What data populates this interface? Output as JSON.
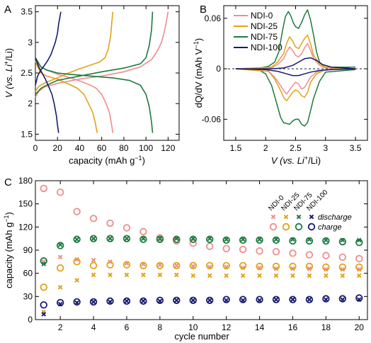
{
  "colors": {
    "NDI-0": "#f08c8c",
    "NDI-25": "#e0a317",
    "NDI-75": "#1d7a3e",
    "NDI-100": "#171b6e"
  },
  "chart_data": [
    {
      "panel": "A",
      "type": "line",
      "xlabel": "capacity (mAh g⁻¹)",
      "ylabel": "V (vs. Li⁺/Li)",
      "xlim": [
        0,
        130
      ],
      "ylim": [
        1.4,
        3.6
      ],
      "xticks": [
        0,
        20,
        40,
        60,
        80,
        100,
        120
      ],
      "yticks": [
        1.5,
        2,
        2.5,
        3,
        3.5
      ],
      "ytick_labels": [
        "1.5",
        "2",
        "2.5",
        "3",
        "3.5"
      ],
      "grid": false,
      "series": [
        {
          "name": "NDI-0",
          "segment": "discharge",
          "x": [
            0,
            2,
            5,
            10,
            20,
            30,
            40,
            50,
            55,
            60,
            64,
            67,
            69,
            70
          ],
          "y": [
            2.75,
            2.65,
            2.6,
            2.55,
            2.48,
            2.43,
            2.37,
            2.3,
            2.25,
            2.15,
            2.0,
            1.85,
            1.65,
            1.52
          ]
        },
        {
          "name": "NDI-0",
          "segment": "charge",
          "x": [
            0,
            3,
            8,
            20,
            40,
            60,
            80,
            95,
            105,
            110,
            114,
            117,
            120
          ],
          "y": [
            2.1,
            2.2,
            2.27,
            2.33,
            2.4,
            2.45,
            2.52,
            2.6,
            2.72,
            2.85,
            3.0,
            3.2,
            3.5
          ]
        },
        {
          "name": "NDI-25",
          "segment": "discharge",
          "x": [
            0,
            2,
            5,
            10,
            20,
            30,
            38,
            44,
            48,
            52,
            54,
            55,
            56
          ],
          "y": [
            2.7,
            2.6,
            2.5,
            2.45,
            2.4,
            2.32,
            2.25,
            2.15,
            2.0,
            1.85,
            1.7,
            1.6,
            1.52
          ]
        },
        {
          "name": "NDI-25",
          "segment": "charge",
          "x": [
            0,
            3,
            10,
            20,
            30,
            40,
            50,
            58,
            63,
            66,
            68,
            69,
            70
          ],
          "y": [
            2.2,
            2.28,
            2.35,
            2.42,
            2.5,
            2.57,
            2.63,
            2.68,
            2.75,
            2.9,
            3.1,
            3.3,
            3.5
          ]
        },
        {
          "name": "NDI-75",
          "segment": "discharge",
          "x": [
            0,
            5,
            10,
            20,
            30,
            50,
            70,
            85,
            95,
            100,
            103,
            105,
            106
          ],
          "y": [
            2.75,
            2.6,
            2.55,
            2.5,
            2.48,
            2.45,
            2.42,
            2.38,
            2.3,
            2.15,
            1.95,
            1.7,
            1.52
          ]
        },
        {
          "name": "NDI-75",
          "segment": "charge",
          "x": [
            0,
            5,
            10,
            20,
            40,
            60,
            80,
            95,
            100,
            103,
            105,
            106
          ],
          "y": [
            2.15,
            2.25,
            2.3,
            2.38,
            2.45,
            2.52,
            2.58,
            2.65,
            2.75,
            2.95,
            3.2,
            3.5
          ]
        },
        {
          "name": "NDI-100",
          "segment": "discharge",
          "x": [
            0,
            3,
            6,
            9,
            12,
            15,
            17,
            19,
            20,
            21
          ],
          "y": [
            2.75,
            2.6,
            2.5,
            2.4,
            2.28,
            2.15,
            2.0,
            1.8,
            1.65,
            1.52
          ]
        },
        {
          "name": "NDI-100",
          "segment": "charge",
          "x": [
            0,
            2,
            5,
            8,
            11,
            14,
            16,
            18,
            20,
            21,
            22,
            23
          ],
          "y": [
            2.3,
            2.45,
            2.55,
            2.62,
            2.7,
            2.8,
            2.9,
            3.0,
            3.15,
            3.3,
            3.4,
            3.5
          ]
        }
      ]
    },
    {
      "panel": "B",
      "type": "line",
      "xlabel": "V (vs. Li⁺/Li)",
      "ylabel": "dQ/dV (mAh V⁻¹)",
      "xlim": [
        1.3,
        3.7
      ],
      "ylim": [
        -0.085,
        0.075
      ],
      "xticks": [
        1.5,
        2,
        2.5,
        3,
        3.5
      ],
      "xtick_labels": [
        "1.5",
        "2",
        "2.5",
        "3",
        "3.5"
      ],
      "yticks": [
        -0.06,
        0,
        0.06
      ],
      "ytick_labels": [
        "-0.06",
        "0",
        "0.06"
      ],
      "grid": false,
      "legend": {
        "position": "top-left",
        "entries": [
          "NDI-0",
          "NDI-25",
          "NDI-75",
          "NDI-100"
        ]
      },
      "series": [
        {
          "name": "NDI-75",
          "segment": "charge",
          "x": [
            1.5,
            1.9,
            2.05,
            2.15,
            2.22,
            2.28,
            2.33,
            2.38,
            2.42,
            2.46,
            2.5,
            2.55,
            2.6,
            2.65,
            2.7,
            2.75,
            2.8,
            2.85,
            2.9,
            2.95,
            3.0,
            3.5
          ],
          "y": [
            0.0,
            0.001,
            0.003,
            0.008,
            0.02,
            0.045,
            0.062,
            0.068,
            0.063,
            0.055,
            0.05,
            0.048,
            0.055,
            0.064,
            0.07,
            0.058,
            0.04,
            0.02,
            0.008,
            0.004,
            0.002,
            0.002
          ]
        },
        {
          "name": "NDI-75",
          "segment": "discharge",
          "x": [
            1.5,
            1.9,
            2.0,
            2.1,
            2.2,
            2.25,
            2.3,
            2.35,
            2.4,
            2.45,
            2.5,
            2.55,
            2.6,
            2.65,
            2.7,
            2.75,
            2.8,
            2.9,
            3.0,
            3.5
          ],
          "y": [
            0.0,
            -0.002,
            -0.006,
            -0.02,
            -0.045,
            -0.058,
            -0.064,
            -0.065,
            -0.066,
            -0.062,
            -0.06,
            -0.06,
            -0.066,
            -0.068,
            -0.064,
            -0.05,
            -0.035,
            -0.015,
            -0.004,
            -0.001
          ]
        },
        {
          "name": "NDI-0",
          "segment": "charge",
          "x": [
            1.5,
            2.1,
            2.2,
            2.3,
            2.35,
            2.4,
            2.45,
            2.5,
            2.55,
            2.6,
            2.65,
            2.7,
            2.75,
            2.8,
            2.9,
            3.0,
            3.5
          ],
          "y": [
            0.0,
            0.001,
            0.005,
            0.012,
            0.02,
            0.026,
            0.022,
            0.016,
            0.014,
            0.018,
            0.025,
            0.03,
            0.022,
            0.012,
            0.004,
            0.001,
            0.0
          ]
        },
        {
          "name": "NDI-0",
          "segment": "discharge",
          "x": [
            1.5,
            2.05,
            2.15,
            2.25,
            2.3,
            2.35,
            2.4,
            2.45,
            2.5,
            2.55,
            2.6,
            2.65,
            2.7,
            2.75,
            2.85,
            3.0,
            3.5
          ],
          "y": [
            0.0,
            -0.003,
            -0.01,
            -0.02,
            -0.026,
            -0.03,
            -0.025,
            -0.02,
            -0.016,
            -0.018,
            -0.024,
            -0.022,
            -0.016,
            -0.01,
            -0.004,
            -0.001,
            0.0
          ]
        },
        {
          "name": "NDI-25",
          "segment": "charge",
          "x": [
            1.5,
            2.1,
            2.2,
            2.3,
            2.35,
            2.4,
            2.45,
            2.5,
            2.55,
            2.6,
            2.65,
            2.7,
            2.75,
            2.8,
            2.9,
            3.0,
            3.5
          ],
          "y": [
            0.0,
            0.002,
            0.008,
            0.018,
            0.03,
            0.038,
            0.033,
            0.026,
            0.024,
            0.03,
            0.036,
            0.04,
            0.03,
            0.016,
            0.006,
            0.002,
            0.0
          ]
        },
        {
          "name": "NDI-25",
          "segment": "discharge",
          "x": [
            1.5,
            2.05,
            2.15,
            2.25,
            2.3,
            2.35,
            2.4,
            2.45,
            2.5,
            2.55,
            2.6,
            2.65,
            2.7,
            2.75,
            2.85,
            3.0,
            3.5
          ],
          "y": [
            0.0,
            -0.003,
            -0.012,
            -0.026,
            -0.034,
            -0.038,
            -0.033,
            -0.028,
            -0.025,
            -0.027,
            -0.032,
            -0.034,
            -0.028,
            -0.016,
            -0.006,
            -0.001,
            0.0
          ]
        },
        {
          "name": "NDI-100",
          "segment": "charge",
          "x": [
            1.5,
            2.1,
            2.3,
            2.45,
            2.55,
            2.65,
            2.75,
            2.85,
            2.95,
            3.1,
            3.3,
            3.5
          ],
          "y": [
            0.0,
            0.0,
            0.001,
            0.004,
            0.008,
            0.012,
            0.013,
            0.01,
            0.005,
            0.002,
            0.001,
            0.0
          ]
        },
        {
          "name": "NDI-100",
          "segment": "discharge",
          "x": [
            1.5,
            2.0,
            2.2,
            2.35,
            2.45,
            2.55,
            2.65,
            2.75,
            2.9,
            3.1,
            3.5
          ],
          "y": [
            0.0,
            -0.001,
            -0.003,
            -0.006,
            -0.008,
            -0.008,
            -0.006,
            -0.004,
            -0.002,
            -0.001,
            0.0
          ]
        }
      ]
    },
    {
      "panel": "C",
      "type": "scatter",
      "xlabel": "cycle number",
      "ylabel": "capacity (mAh g⁻¹)",
      "xlim": [
        0.5,
        20.5
      ],
      "ylim": [
        0,
        180
      ],
      "xticks": [
        2,
        4,
        6,
        8,
        10,
        12,
        14,
        16,
        18,
        20
      ],
      "yticks": [
        0,
        30,
        60,
        90,
        120,
        150,
        180
      ],
      "grid": false,
      "x": [
        1,
        2,
        3,
        4,
        5,
        6,
        7,
        8,
        9,
        10,
        11,
        12,
        13,
        14,
        15,
        16,
        17,
        18,
        19,
        20
      ],
      "legend": {
        "position": "top-right",
        "names": [
          "NDI-0",
          "NDI-25",
          "NDI-75",
          "NDI-100"
        ],
        "discharge_label": "discharge",
        "charge_label": "charge"
      },
      "series": [
        {
          "name": "NDI-0",
          "kind": "discharge",
          "values": [
            75,
            81,
            78,
            77,
            75,
            73,
            72,
            71,
            70,
            69,
            68,
            68,
            67,
            67,
            66,
            66,
            66,
            65,
            65,
            65
          ]
        },
        {
          "name": "NDI-0",
          "kind": "charge",
          "values": [
            170,
            165,
            140,
            131,
            125,
            119,
            114,
            106,
            102,
            99,
            95,
            92,
            91,
            89,
            88,
            86,
            84,
            83,
            81,
            79
          ]
        },
        {
          "name": "NDI-25",
          "kind": "discharge",
          "values": [
            10,
            42,
            51,
            58,
            58,
            58,
            58,
            58,
            58,
            57,
            57,
            57,
            57,
            57,
            57,
            57,
            57,
            57,
            57,
            57
          ]
        },
        {
          "name": "NDI-25",
          "kind": "charge",
          "values": [
            42,
            67,
            75,
            70,
            71,
            71,
            70,
            70,
            70,
            70,
            70,
            70,
            70,
            69,
            69,
            69,
            69,
            68,
            68,
            68
          ]
        },
        {
          "name": "NDI-75",
          "kind": "discharge",
          "values": [
            72,
            97,
            104,
            105,
            105,
            105,
            105,
            105,
            105,
            105,
            105,
            104,
            104,
            104,
            104,
            104,
            104,
            103,
            103,
            103
          ]
        },
        {
          "name": "NDI-75",
          "kind": "charge",
          "values": [
            76,
            96,
            104,
            105,
            105,
            105,
            104,
            104,
            104,
            104,
            104,
            103,
            103,
            103,
            103,
            102,
            102,
            102,
            101,
            100
          ]
        },
        {
          "name": "NDI-100",
          "kind": "discharge",
          "values": [
            7,
            20,
            22,
            23,
            23,
            24,
            24,
            24,
            25,
            25,
            25,
            25,
            25,
            25,
            26,
            26,
            26,
            26,
            26,
            26
          ]
        },
        {
          "name": "NDI-100",
          "kind": "charge",
          "values": [
            19,
            22,
            23,
            23,
            24,
            24,
            24,
            25,
            25,
            25,
            25,
            26,
            26,
            26,
            26,
            26,
            26,
            27,
            27,
            28
          ]
        }
      ]
    }
  ],
  "panels": [
    {
      "letter": "A",
      "ylabel_main": "V",
      "ylabel_paren": "(vs. Li",
      "ylabel_sup": "+",
      "ylabel_tail": "/Li)",
      "xlabel_main": "capacity (mAh g",
      "xlabel_sup": "−1",
      "xlabel_tail": ")"
    },
    {
      "letter": "B",
      "ylabel_main": "dQ/dV (mAh V",
      "ylabel_sup": "−1",
      "ylabel_tail": ")",
      "xlabel_main": "V",
      "xlabel_paren": "(vs. Li",
      "xlabel_sup": "+",
      "xlabel_tail": "/Li)"
    },
    {
      "letter": "C",
      "ylabel_main": "capacity (mAh g",
      "ylabel_sup": "−1",
      "ylabel_tail": ")",
      "xlabel_main": "cycle number"
    }
  ]
}
